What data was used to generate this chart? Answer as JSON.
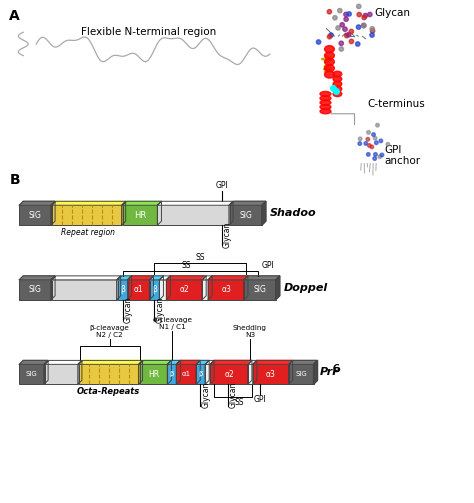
{
  "title_A": "A",
  "title_B": "B",
  "label_flexible": "Flexible N-terminal region",
  "label_glycan_top": "Glycan",
  "label_cterminus": "C-terminus",
  "label_gpi_anchor": "GPI\nanchor",
  "shadoo_label": "Shadoo",
  "doppel_label": "Doppel",
  "prpc_label": "PrP",
  "colors": {
    "sig": "#606060",
    "light_gray": "#d8d8d8",
    "yellow": "#e8c840",
    "green": "#70b840",
    "white_region": "#f0f0f0",
    "red": "#e02020",
    "blue": "#40a8e0",
    "background": "#ffffff"
  },
  "repeat_region_label": "Repeat region",
  "octa_repeats_label": "Octa-Repeats",
  "hr_label": "HR",
  "gpi_label": "GPI",
  "ss_label": "SS",
  "glycan_label": "Glycan",
  "beta_cleavage_label": "β-cleavage\nN2 / C2",
  "alpha_cleavage_label": "α-cleavage\nN1 / C1",
  "shedding_label": "Shedding\nN3"
}
